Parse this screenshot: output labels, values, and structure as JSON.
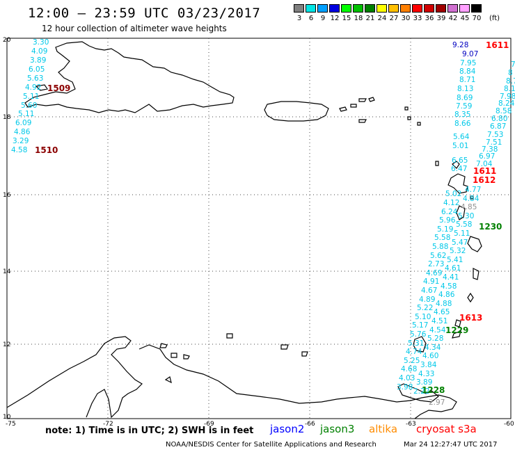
{
  "header": {
    "title": "12:00 – 23:59 UTC 03/23/2017",
    "subtitle": "12 hour collection of altimeter wave heights"
  },
  "legend": {
    "unit": "(ft)",
    "items": [
      {
        "label": "3",
        "color": "#808080"
      },
      {
        "label": "6",
        "color": "#00e5e5"
      },
      {
        "label": "9",
        "color": "#00a0ff"
      },
      {
        "label": "12",
        "color": "#0000e0"
      },
      {
        "label": "15",
        "color": "#00ff00"
      },
      {
        "label": "18",
        "color": "#00c000"
      },
      {
        "label": "21",
        "color": "#008000"
      },
      {
        "label": "24",
        "color": "#ffff00"
      },
      {
        "label": "27",
        "color": "#ffc000"
      },
      {
        "label": "30",
        "color": "#ff8000"
      },
      {
        "label": "33",
        "color": "#ff0000"
      },
      {
        "label": "36",
        "color": "#d00000"
      },
      {
        "label": "39",
        "color": "#a00000"
      },
      {
        "label": "42",
        "color": "#d070d0"
      },
      {
        "label": "45",
        "color": "#ffa0ff"
      },
      {
        "label": "70",
        "color": "#000000"
      }
    ]
  },
  "axes": {
    "lon_labels": [
      "-75",
      "-72",
      "-69",
      "-66",
      "-63",
      "-60"
    ],
    "lat_labels": [
      "20",
      "18",
      "16",
      "14",
      "12",
      "10"
    ]
  },
  "obs": {
    "track1": [
      "3.30",
      "4.09",
      "3.89",
      "6.05",
      "5.63",
      "4.92",
      "5.11",
      "6.09",
      "4.86",
      "3.29",
      "4.58"
    ],
    "track1_mid": [
      "5.11",
      "5.60"
    ],
    "track2": [
      "9.28",
      "9.07",
      "7.95",
      "8.84",
      "8.71",
      "8.13",
      "8.69",
      "7.59",
      "8.35",
      "8.66",
      "5.64",
      "5.01",
      "6.65",
      "6.47"
    ],
    "track3": [
      "7",
      "8",
      "8.7",
      "8.1",
      "7.98",
      "8.24",
      "8.58",
      "6.80",
      "6.87",
      "7.53",
      "7.51",
      "7.38",
      "6.97",
      "7.04"
    ],
    "track4": [
      "4.77",
      "5.02",
      "4.84",
      "4.12",
      "4.85",
      "6.24",
      "5.30",
      "5.96",
      "5.58",
      "5.19",
      "5.11",
      "5.58",
      "5.47",
      "5.88",
      "5.32",
      "5.62",
      "5.41",
      "2.73",
      "4.61",
      "4.69",
      "4.41",
      "4.91",
      "4.58",
      "4.67",
      "4.86",
      "4.89",
      "4.88",
      "5.22",
      "4.65",
      "5.10",
      "4.51",
      "5.17",
      "4.54",
      "5.76",
      "5.28",
      "5.31",
      "4.34",
      "4.74",
      "4.60",
      "5.25",
      "3.84",
      "4.68",
      "4.33",
      "4.03",
      "3.89",
      "3.98",
      "2.22"
    ],
    "grey": [
      "2.97"
    ]
  },
  "times": {
    "t1509": "1509",
    "t1510": "1510",
    "t1611a": "1611",
    "t1611b": "1611",
    "t1612": "1612",
    "t1613": "1613",
    "t1230": "1230",
    "t1229": "1229",
    "t1228": "1228"
  },
  "footer": {
    "note": "note: 1) Time is in UTC; 2) SWH is in feet",
    "sats": [
      {
        "name": "jason2",
        "color": "#0000ff"
      },
      {
        "name": "jason3",
        "color": "#008000"
      },
      {
        "name": "altika",
        "color": "#ff8c00"
      },
      {
        "name": "cryosat s3a",
        "color": "#ff0000"
      }
    ],
    "credit": "NOAA/NESDIS Center for Satellite Applications and Research",
    "stamp": "Mar 24 12:27:47 UTC 2017"
  }
}
